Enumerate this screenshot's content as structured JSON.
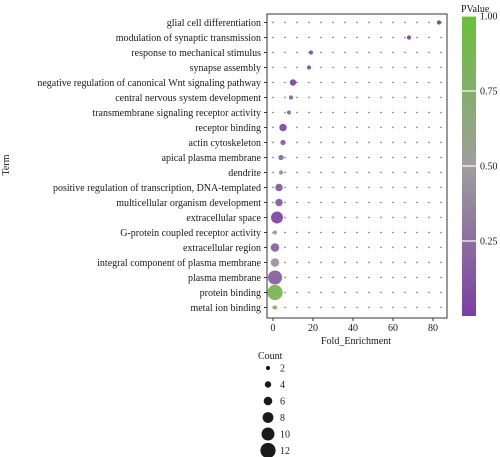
{
  "chart_data": {
    "type": "scatter",
    "xlabel": "Fold_Enrichment",
    "ylabel": "Term",
    "xlim": [
      -3,
      87
    ],
    "xticks": [
      0,
      20,
      40,
      60,
      80
    ],
    "terms": [
      "glial cell differentiation",
      "modulation of synaptic transmission",
      "response to mechanical stimulus",
      "synapse assembly",
      "negative regulation of canonical Wnt signaling pathway",
      "central nervous system development",
      "transmembrane signaling receptor activity",
      "receptor binding",
      "actin cytoskeleton",
      "apical plasma membrane",
      "dendrite",
      "positive regulation of transcription, DNA-templated",
      "multicellular organism development",
      "extracellular space",
      "G-protein coupled receptor activity",
      "extracellular region",
      "integral component of plasma membrane",
      "plasma membrane",
      "protein binding",
      "metal ion binding"
    ],
    "points": [
      {
        "term": "glial cell differentiation",
        "fold_enrichment": 83,
        "count": 2,
        "pvalue": 0.02
      },
      {
        "term": "modulation of synaptic transmission",
        "fold_enrichment": 68,
        "count": 2,
        "pvalue": 0.03
      },
      {
        "term": "response to mechanical stimulus",
        "fold_enrichment": 19,
        "count": 2,
        "pvalue": 0.1
      },
      {
        "term": "synapse assembly",
        "fold_enrichment": 18,
        "count": 2,
        "pvalue": 0.11
      },
      {
        "term": "negative regulation of canonical Wnt signaling pathway",
        "fold_enrichment": 10,
        "count": 4,
        "pvalue": 0.05
      },
      {
        "term": "central nervous system development",
        "fold_enrichment": 9,
        "count": 2,
        "pvalue": 0.2
      },
      {
        "term": "transmembrane signaling receptor activity",
        "fold_enrichment": 8,
        "count": 2,
        "pvalue": 0.22
      },
      {
        "term": "receptor binding",
        "fold_enrichment": 5,
        "count": 5,
        "pvalue": 0.08
      },
      {
        "term": "actin cytoskeleton",
        "fold_enrichment": 5,
        "count": 3,
        "pvalue": 0.18
      },
      {
        "term": "apical plasma membrane",
        "fold_enrichment": 4,
        "count": 3,
        "pvalue": 0.22
      },
      {
        "term": "dendrite",
        "fold_enrichment": 4,
        "count": 2,
        "pvalue": 0.4
      },
      {
        "term": "positive regulation of transcription, DNA-templated",
        "fold_enrichment": 3,
        "count": 5,
        "pvalue": 0.15
      },
      {
        "term": "multicellular organism development",
        "fold_enrichment": 3,
        "count": 5,
        "pvalue": 0.16
      },
      {
        "term": "extracellular space",
        "fold_enrichment": 2,
        "count": 9,
        "pvalue": 0.05
      },
      {
        "term": "G-protein coupled receptor activity",
        "fold_enrichment": 1,
        "count": 2,
        "pvalue": 0.55
      },
      {
        "term": "extracellular region",
        "fold_enrichment": 1,
        "count": 6,
        "pvalue": 0.2
      },
      {
        "term": "integral component of plasma membrane",
        "fold_enrichment": 1,
        "count": 6,
        "pvalue": 0.45
      },
      {
        "term": "plasma membrane",
        "fold_enrichment": 1,
        "count": 11,
        "pvalue": 0.18
      },
      {
        "term": "protein binding",
        "fold_enrichment": 1,
        "count": 12,
        "pvalue": 0.85
      },
      {
        "term": "metal ion binding",
        "fold_enrichment": 1,
        "count": 2,
        "pvalue": 0.78
      }
    ],
    "colorbar": {
      "title": "PValue",
      "range": [
        0,
        1
      ],
      "ticks": [
        "0.25",
        "0.50",
        "0.75",
        "1.00"
      ],
      "low_color": "#7b3fa0",
      "mid_color": "#9e9e9e",
      "high_color": "#6abf3a"
    },
    "size_legend": {
      "title": "Count",
      "values": [
        2,
        4,
        6,
        8,
        10,
        12
      ]
    },
    "point_color_default": "#8a47b5",
    "grid": "dotted",
    "legend_placement": "right (color), bottom (size)"
  }
}
